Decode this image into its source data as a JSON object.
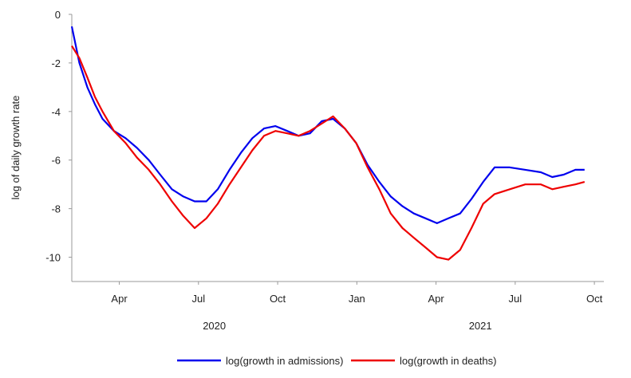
{
  "chart_data": {
    "type": "line",
    "y_label": "log of daily growth rate",
    "x": [
      2020.1,
      2020.124,
      2020.149,
      2020.173,
      2020.197,
      2020.233,
      2020.27,
      2020.306,
      2020.343,
      2020.379,
      2020.416,
      2020.452,
      2020.488,
      2020.525,
      2020.561,
      2020.598,
      2020.634,
      2020.67,
      2020.707,
      2020.743,
      2020.78,
      2020.816,
      2020.852,
      2020.889,
      2020.925,
      2020.962,
      2020.998,
      2021.034,
      2021.071,
      2021.107,
      2021.144,
      2021.18,
      2021.217,
      2021.253,
      2021.289,
      2021.326,
      2021.362,
      2021.399,
      2021.435,
      2021.483,
      2021.532,
      2021.581,
      2021.617,
      2021.653,
      2021.69,
      2021.719
    ],
    "series": [
      {
        "name": "log(growth in admissions)",
        "color": "#0000ee",
        "values": [
          -0.5,
          -2.0,
          -3.0,
          -3.7,
          -4.3,
          -4.8,
          -5.1,
          -5.5,
          -6.0,
          -6.6,
          -7.2,
          -7.5,
          -7.7,
          -7.7,
          -7.2,
          -6.4,
          -5.7,
          -5.1,
          -4.7,
          -4.6,
          -4.8,
          -5.0,
          -4.9,
          -4.4,
          -4.3,
          -4.7,
          -5.3,
          -6.2,
          -6.9,
          -7.5,
          -7.9,
          -8.2,
          -8.4,
          -8.6,
          -8.4,
          -8.2,
          -7.6,
          -6.9,
          -6.3,
          -6.3,
          -6.4,
          -6.5,
          -6.7,
          -6.6,
          -6.4,
          -6.4
        ]
      },
      {
        "name": "log(growth in deaths)",
        "color": "#ee0000",
        "values": [
          -1.3,
          -1.8,
          -2.6,
          -3.4,
          -4.0,
          -4.8,
          -5.3,
          -5.9,
          -6.4,
          -7.0,
          -7.7,
          -8.3,
          -8.8,
          -8.4,
          -7.8,
          -7.0,
          -6.3,
          -5.6,
          -5.0,
          -4.8,
          -4.9,
          -5.0,
          -4.8,
          -4.5,
          -4.2,
          -4.7,
          -5.3,
          -6.3,
          -7.2,
          -8.2,
          -8.8,
          -9.2,
          -9.6,
          -10.0,
          -10.1,
          -9.7,
          -8.8,
          -7.8,
          -7.4,
          -7.2,
          -7.0,
          -7.0,
          -7.2,
          -7.1,
          -7.0,
          -6.9
        ]
      }
    ],
    "xlim": [
      2020.1,
      2021.78
    ],
    "xticks": [
      {
        "value": 2020.25,
        "label": "Apr"
      },
      {
        "value": 2020.5,
        "label": "Jul"
      },
      {
        "value": 2020.75,
        "label": "Oct"
      },
      {
        "value": 2021.0,
        "label": "Jan"
      },
      {
        "value": 2021.25,
        "label": "Apr"
      },
      {
        "value": 2021.5,
        "label": "Jul"
      },
      {
        "value": 2021.75,
        "label": "Oct"
      }
    ],
    "x_group_labels": [
      "2020",
      "2021"
    ],
    "ylim": [
      -11,
      0
    ],
    "yticks": [
      0,
      -2,
      -4,
      -6,
      -8,
      -10
    ],
    "legend": "bottom"
  }
}
